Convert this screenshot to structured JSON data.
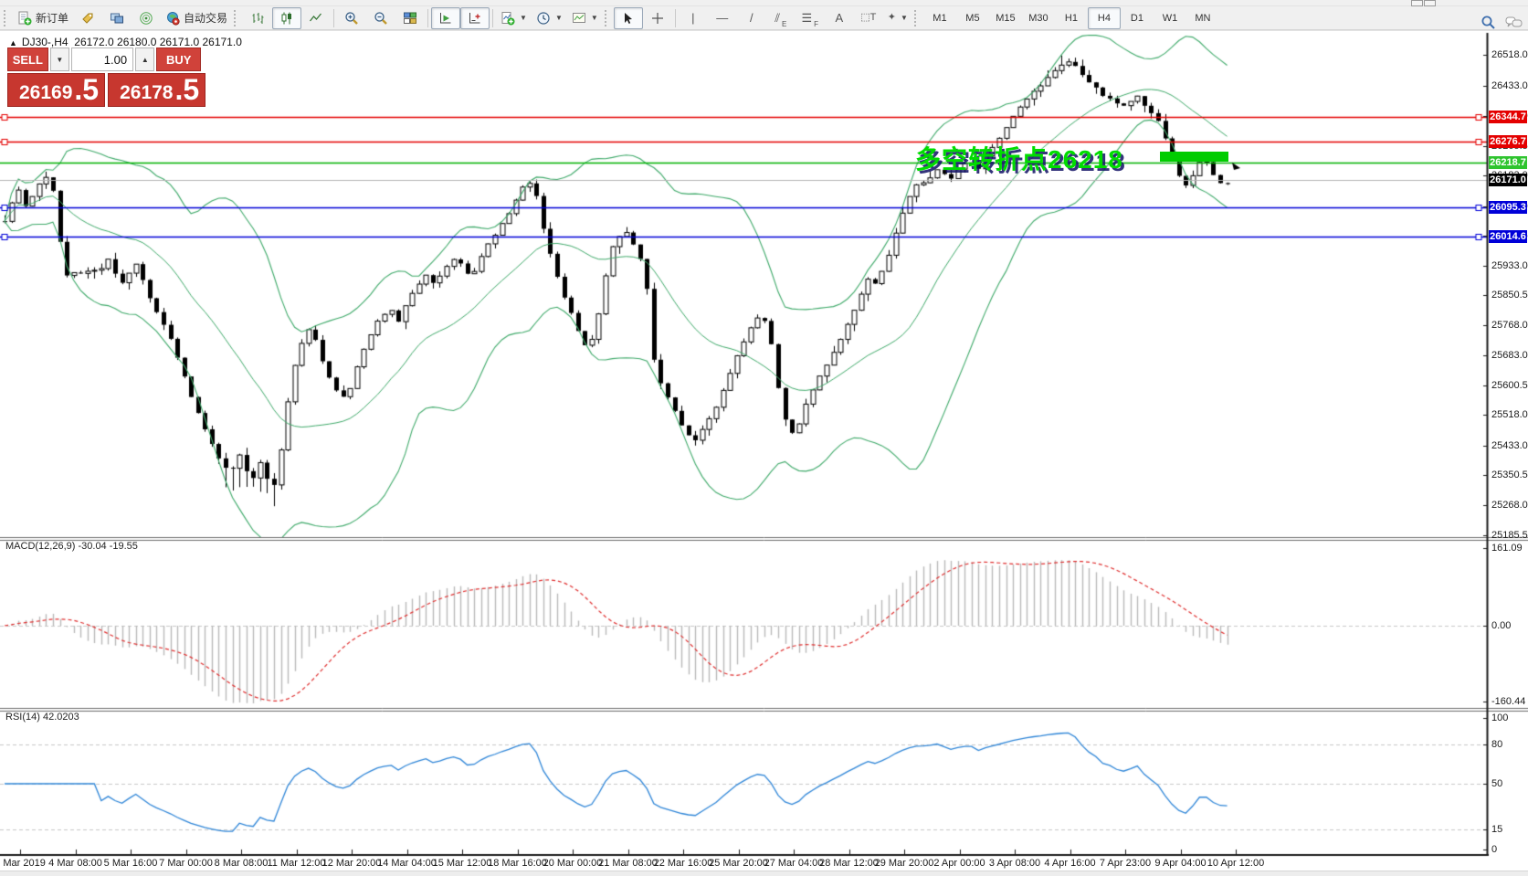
{
  "toolbar": {
    "new_order_label": "新订单",
    "auto_trading_label": "自动交易",
    "timeframes": [
      "M1",
      "M5",
      "M15",
      "M30",
      "H1",
      "H4",
      "D1",
      "W1",
      "MN"
    ],
    "active_timeframe": "H4"
  },
  "chart_header": {
    "symbol_period": "DJ30-,H4",
    "open": "26172.0",
    "high": "26180.0",
    "low": "26171.0",
    "close": "26171.0"
  },
  "trade_panel": {
    "sell_label": "SELL",
    "buy_label": "BUY",
    "volume": "1.00",
    "sell_price_main": "26169",
    "sell_price_frac": ".5",
    "buy_price_main": "26178",
    "buy_price_frac": ".5"
  },
  "price_axis": {
    "ticks": [
      "26518.0",
      "26433.0",
      "26348.0",
      "26265.5",
      "26183.0",
      "26098.0",
      "26015.5",
      "25933.0",
      "25850.5",
      "25768.0",
      "25683.0",
      "25600.5",
      "25518.0",
      "25433.0",
      "25350.5",
      "25268.0",
      "25185.5"
    ]
  },
  "levels": [
    {
      "price": 26344.7,
      "label": "26344.7",
      "line_color": "#e40000",
      "label_bg": "#e40000",
      "handles": true,
      "type": "resistance-line"
    },
    {
      "price": 26276.7,
      "label": "26276.7",
      "line_color": "#e40000",
      "label_bg": "#e40000",
      "handles": true,
      "type": "resistance-line"
    },
    {
      "price": 26218.7,
      "label": "26218.7",
      "line_color": "#00b200",
      "label_bg": "#2fc42f",
      "handles": false,
      "type": "pivot-line"
    },
    {
      "price": 26171.0,
      "label": "26171.0",
      "line_color": "#b4b4b4",
      "label_bg": "#000000",
      "handles": false,
      "type": "current-bid-line"
    },
    {
      "price": 26095.3,
      "label": "26095.3",
      "line_color": "#0000d8",
      "label_bg": "#0000d8",
      "handles": true,
      "type": "support-line"
    },
    {
      "price": 26014.6,
      "label": "26014.6",
      "line_color": "#0000d8",
      "label_bg": "#0000d8",
      "handles": true,
      "type": "support-line"
    }
  ],
  "annotation": {
    "text": "多空转折点26218",
    "color": "#00dc00",
    "highlight_level": "26218.7"
  },
  "macd_panel": {
    "title": "MACD(12,26,9)",
    "values": "-30.04 -19.55",
    "axis": [
      "161.09",
      "0.00",
      "-160.44"
    ]
  },
  "rsi_panel": {
    "title": "RSI(14)",
    "value": "42.0203",
    "axis": [
      "100",
      "80",
      "50",
      "15",
      "0"
    ]
  },
  "time_axis": [
    "1 Mar 2019",
    "4 Mar 08:00",
    "5 Mar 16:00",
    "7 Mar 00:00",
    "8 Mar 08:00",
    "11 Mar 12:00",
    "12 Mar 20:00",
    "14 Mar 04:00",
    "15 Mar 12:00",
    "18 Mar 16:00",
    "20 Mar 00:00",
    "21 Mar 08:00",
    "22 Mar 16:00",
    "25 Mar 20:00",
    "27 Mar 04:00",
    "28 Mar 12:00",
    "29 Mar 20:00",
    "2 Apr 00:00",
    "3 Apr 08:00",
    "4 Apr 16:00",
    "7 Apr 23:00",
    "9 Apr 04:00",
    "10 Apr 12:00"
  ],
  "chart_data": {
    "type": "candlestick",
    "symbol": "DJ30-",
    "period": "H4",
    "ylim": [
      25185.5,
      26518.0
    ],
    "macd_ylim": [
      -160.44,
      161.09
    ],
    "rsi_ylim": [
      0,
      100
    ],
    "rsi_levels": [
      80,
      50,
      15
    ],
    "indicators": [
      "Bollinger Bands(20,2)",
      "MACD(12,26,9)",
      "RSI(14)"
    ],
    "last_close": 26171.0,
    "price_path": [
      [
        5,
        26060
      ],
      [
        13,
        26110
      ],
      [
        21,
        26150
      ],
      [
        29,
        26090
      ],
      [
        37,
        26130
      ],
      [
        45,
        26170
      ],
      [
        53,
        26180
      ],
      [
        60,
        26120
      ],
      [
        68,
        25950
      ],
      [
        76,
        25880
      ],
      [
        84,
        25940
      ],
      [
        92,
        25890
      ],
      [
        100,
        25940
      ],
      [
        108,
        25900
      ],
      [
        116,
        25960
      ],
      [
        124,
        25920
      ],
      [
        132,
        25880
      ],
      [
        140,
        25910
      ],
      [
        148,
        25940
      ],
      [
        156,
        25890
      ],
      [
        164,
        25840
      ],
      [
        172,
        25800
      ],
      [
        180,
        25760
      ],
      [
        188,
        25720
      ],
      [
        196,
        25660
      ],
      [
        204,
        25610
      ],
      [
        212,
        25550
      ],
      [
        220,
        25500
      ],
      [
        228,
        25460
      ],
      [
        236,
        25410
      ],
      [
        244,
        25380
      ],
      [
        252,
        25350
      ],
      [
        260,
        25420
      ],
      [
        268,
        25370
      ],
      [
        276,
        25330
      ],
      [
        284,
        25390
      ],
      [
        292,
        25340
      ],
      [
        300,
        25320
      ],
      [
        308,
        25430
      ],
      [
        316,
        25570
      ],
      [
        324,
        25670
      ],
      [
        332,
        25730
      ],
      [
        340,
        25770
      ],
      [
        348,
        25700
      ],
      [
        356,
        25640
      ],
      [
        364,
        25600
      ],
      [
        372,
        25580
      ],
      [
        380,
        25560
      ],
      [
        388,
        25630
      ],
      [
        396,
        25690
      ],
      [
        404,
        25730
      ],
      [
        412,
        25770
      ],
      [
        420,
        25800
      ],
      [
        428,
        25810
      ],
      [
        436,
        25780
      ],
      [
        444,
        25820
      ],
      [
        452,
        25860
      ],
      [
        460,
        25890
      ],
      [
        468,
        25910
      ],
      [
        476,
        25880
      ],
      [
        484,
        25910
      ],
      [
        492,
        25940
      ],
      [
        500,
        25960
      ],
      [
        508,
        25920
      ],
      [
        516,
        25900
      ],
      [
        524,
        25940
      ],
      [
        532,
        25980
      ],
      [
        540,
        26010
      ],
      [
        548,
        26040
      ],
      [
        556,
        26070
      ],
      [
        564,
        26110
      ],
      [
        572,
        26150
      ],
      [
        580,
        26165
      ],
      [
        588,
        26120
      ],
      [
        596,
        26020
      ],
      [
        604,
        25950
      ],
      [
        612,
        25890
      ],
      [
        620,
        25830
      ],
      [
        628,
        25790
      ],
      [
        636,
        25730
      ],
      [
        644,
        25700
      ],
      [
        652,
        25750
      ],
      [
        660,
        25860
      ],
      [
        668,
        25980
      ],
      [
        676,
        26010
      ],
      [
        684,
        26030
      ],
      [
        692,
        26000
      ],
      [
        700,
        25960
      ],
      [
        708,
        25880
      ],
      [
        714,
        25690
      ],
      [
        722,
        25610
      ],
      [
        730,
        25570
      ],
      [
        738,
        25530
      ],
      [
        746,
        25490
      ],
      [
        754,
        25460
      ],
      [
        762,
        25450
      ],
      [
        770,
        25480
      ],
      [
        778,
        25510
      ],
      [
        786,
        25550
      ],
      [
        794,
        25600
      ],
      [
        802,
        25650
      ],
      [
        810,
        25700
      ],
      [
        818,
        25740
      ],
      [
        826,
        25780
      ],
      [
        834,
        25800
      ],
      [
        842,
        25750
      ],
      [
        848,
        25660
      ],
      [
        854,
        25560
      ],
      [
        862,
        25480
      ],
      [
        870,
        25460
      ],
      [
        878,
        25520
      ],
      [
        886,
        25570
      ],
      [
        894,
        25610
      ],
      [
        902,
        25640
      ],
      [
        910,
        25680
      ],
      [
        918,
        25720
      ],
      [
        926,
        25760
      ],
      [
        934,
        25800
      ],
      [
        942,
        25850
      ],
      [
        950,
        25900
      ],
      [
        958,
        25880
      ],
      [
        966,
        25920
      ],
      [
        974,
        25970
      ],
      [
        982,
        26030
      ],
      [
        990,
        26090
      ],
      [
        998,
        26140
      ],
      [
        1006,
        26170
      ],
      [
        1014,
        26160
      ],
      [
        1022,
        26190
      ],
      [
        1030,
        26200
      ],
      [
        1038,
        26170
      ],
      [
        1046,
        26190
      ],
      [
        1054,
        26210
      ],
      [
        1062,
        26220
      ],
      [
        1070,
        26200
      ],
      [
        1078,
        26230
      ],
      [
        1086,
        26260
      ],
      [
        1094,
        26290
      ],
      [
        1102,
        26320
      ],
      [
        1110,
        26350
      ],
      [
        1118,
        26380
      ],
      [
        1126,
        26400
      ],
      [
        1134,
        26420
      ],
      [
        1142,
        26440
      ],
      [
        1150,
        26460
      ],
      [
        1158,
        26480
      ],
      [
        1166,
        26500
      ],
      [
        1174,
        26495
      ],
      [
        1182,
        26470
      ],
      [
        1190,
        26450
      ],
      [
        1198,
        26430
      ],
      [
        1206,
        26410
      ],
      [
        1214,
        26395
      ],
      [
        1222,
        26385
      ],
      [
        1230,
        26380
      ],
      [
        1238,
        26390
      ],
      [
        1246,
        26400
      ],
      [
        1254,
        26370
      ],
      [
        1262,
        26350
      ],
      [
        1270,
        26330
      ],
      [
        1278,
        26260
      ],
      [
        1286,
        26210
      ],
      [
        1294,
        26160
      ],
      [
        1302,
        26150
      ],
      [
        1310,
        26210
      ],
      [
        1318,
        26230
      ],
      [
        1326,
        26195
      ],
      [
        1334,
        26165
      ],
      [
        1341,
        26150
      ],
      [
        1347,
        26171
      ]
    ]
  }
}
